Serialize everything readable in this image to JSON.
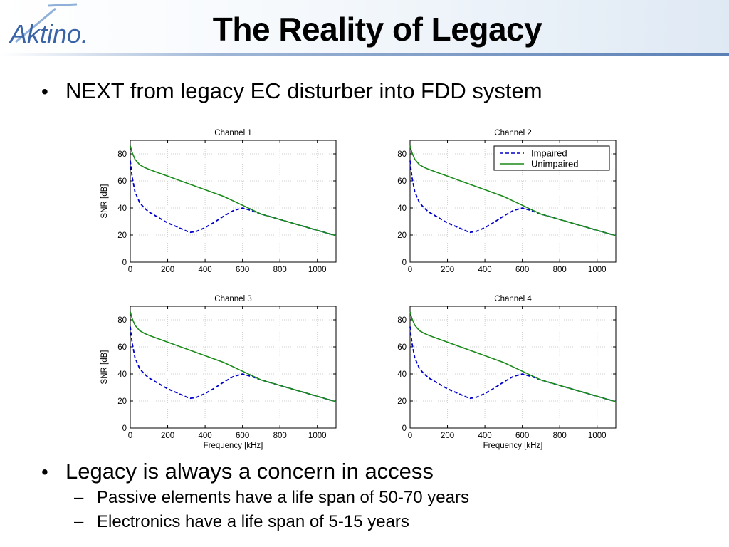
{
  "slide": {
    "title": "The Reality of Legacy",
    "logo_text": "Aktino",
    "bullet1": "NEXT from legacy EC disturber into FDD system",
    "bullet2": "Legacy is always a concern in access",
    "sub_bullets": [
      "Passive elements have a life span of 50-70 years",
      "Electronics have a life span of 5-15 years"
    ],
    "bullet_glyph": "•",
    "dash_glyph": "–"
  },
  "colors": {
    "impaired": "#0000cc",
    "unimpaired": "#1a8a1a",
    "grid": "#cfcfcf",
    "logo_blue": "#3a64a8",
    "logo_light": "#8fb0d8"
  },
  "chart_data": [
    {
      "type": "line",
      "title": "Channel 1",
      "xlabel": "",
      "ylabel": "SNR [dB]",
      "xlim": [
        0,
        1100
      ],
      "ylim": [
        0,
        90
      ],
      "xticks": [
        0,
        200,
        400,
        600,
        800,
        1000
      ],
      "yticks": [
        0,
        20,
        40,
        60,
        80
      ],
      "grid": true,
      "legend": null,
      "series": [
        {
          "name": "Impaired",
          "style": "dashed",
          "x": [
            0,
            10,
            25,
            50,
            75,
            100,
            150,
            200,
            250,
            300,
            320,
            350,
            400,
            450,
            500,
            550,
            600,
            650,
            700,
            800,
            900,
            1000,
            1100
          ],
          "y": [
            75,
            63,
            52,
            44,
            40,
            37,
            33,
            29,
            26,
            23,
            22,
            22.5,
            25.5,
            29.5,
            34,
            38,
            40,
            38,
            35.5,
            31.5,
            27.5,
            23.5,
            19.5
          ]
        },
        {
          "name": "Unimpaired",
          "style": "solid",
          "x": [
            0,
            10,
            25,
            50,
            75,
            100,
            150,
            200,
            300,
            400,
            500,
            600,
            700,
            800,
            900,
            1000,
            1100
          ],
          "y": [
            86,
            81,
            76,
            72,
            70,
            68.5,
            66,
            63.5,
            58.5,
            53.5,
            48.5,
            42,
            35.5,
            31.5,
            27.5,
            23.5,
            19.5
          ]
        }
      ]
    },
    {
      "type": "line",
      "title": "Channel 2",
      "xlabel": "",
      "ylabel": "",
      "xlim": [
        0,
        1100
      ],
      "ylim": [
        0,
        90
      ],
      "xticks": [
        0,
        200,
        400,
        600,
        800,
        1000
      ],
      "yticks": [
        0,
        20,
        40,
        60,
        80
      ],
      "grid": true,
      "legend": "top-right",
      "series": [
        {
          "name": "Impaired",
          "style": "dashed",
          "x": [
            0,
            10,
            25,
            50,
            75,
            100,
            150,
            200,
            250,
            300,
            320,
            350,
            400,
            450,
            500,
            550,
            600,
            650,
            700,
            800,
            900,
            1000,
            1100
          ],
          "y": [
            75,
            63,
            52,
            44,
            40,
            37,
            33,
            29,
            26,
            23,
            22,
            22.5,
            25.5,
            29.5,
            34,
            38,
            40,
            38,
            35.5,
            31.5,
            27.5,
            23.5,
            19.5
          ]
        },
        {
          "name": "Unimpaired",
          "style": "solid",
          "x": [
            0,
            10,
            25,
            50,
            75,
            100,
            150,
            200,
            300,
            400,
            500,
            600,
            700,
            800,
            900,
            1000,
            1100
          ],
          "y": [
            86,
            81,
            76,
            72,
            70,
            68.5,
            66,
            63.5,
            58.5,
            53.5,
            48.5,
            42,
            35.5,
            31.5,
            27.5,
            23.5,
            19.5
          ]
        }
      ]
    },
    {
      "type": "line",
      "title": "Channel 3",
      "xlabel": "Frequency [kHz]",
      "ylabel": "SNR [dB]",
      "xlim": [
        0,
        1100
      ],
      "ylim": [
        0,
        90
      ],
      "xticks": [
        0,
        200,
        400,
        600,
        800,
        1000
      ],
      "yticks": [
        0,
        20,
        40,
        60,
        80
      ],
      "grid": true,
      "legend": null,
      "series": [
        {
          "name": "Impaired",
          "style": "dashed",
          "x": [
            0,
            10,
            25,
            50,
            75,
            100,
            150,
            200,
            250,
            300,
            320,
            350,
            400,
            450,
            500,
            550,
            600,
            650,
            700,
            800,
            900,
            1000,
            1100
          ],
          "y": [
            75,
            63,
            52,
            44,
            40,
            37,
            33,
            29,
            26,
            23,
            22,
            22.5,
            25.5,
            29.5,
            34,
            38,
            40,
            38,
            35.5,
            31.5,
            27.5,
            23.5,
            19.5
          ]
        },
        {
          "name": "Unimpaired",
          "style": "solid",
          "x": [
            0,
            10,
            25,
            50,
            75,
            100,
            150,
            200,
            300,
            400,
            500,
            600,
            700,
            800,
            900,
            1000,
            1100
          ],
          "y": [
            86,
            81,
            76,
            72,
            70,
            68.5,
            66,
            63.5,
            58.5,
            53.5,
            48.5,
            42,
            35.5,
            31.5,
            27.5,
            23.5,
            19.5
          ]
        }
      ]
    },
    {
      "type": "line",
      "title": "Channel 4",
      "xlabel": "Frequency [kHz]",
      "ylabel": "",
      "xlim": [
        0,
        1100
      ],
      "ylim": [
        0,
        90
      ],
      "xticks": [
        0,
        200,
        400,
        600,
        800,
        1000
      ],
      "yticks": [
        0,
        20,
        40,
        60,
        80
      ],
      "grid": true,
      "legend": null,
      "series": [
        {
          "name": "Impaired",
          "style": "dashed",
          "x": [
            0,
            10,
            25,
            50,
            75,
            100,
            150,
            200,
            250,
            300,
            320,
            350,
            400,
            450,
            500,
            550,
            600,
            650,
            700,
            800,
            900,
            1000,
            1100
          ],
          "y": [
            75,
            63,
            52,
            44,
            40,
            37,
            33,
            29,
            26,
            23,
            22,
            22.5,
            25.5,
            29.5,
            34,
            38,
            40,
            38,
            35.5,
            31.5,
            27.5,
            23.5,
            19.5
          ]
        },
        {
          "name": "Unimpaired",
          "style": "solid",
          "x": [
            0,
            10,
            25,
            50,
            75,
            100,
            150,
            200,
            300,
            400,
            500,
            600,
            700,
            800,
            900,
            1000,
            1100
          ],
          "y": [
            86,
            81,
            76,
            72,
            70,
            68.5,
            66,
            63.5,
            58.5,
            53.5,
            48.5,
            42,
            35.5,
            31.5,
            27.5,
            23.5,
            19.5
          ]
        }
      ]
    }
  ]
}
